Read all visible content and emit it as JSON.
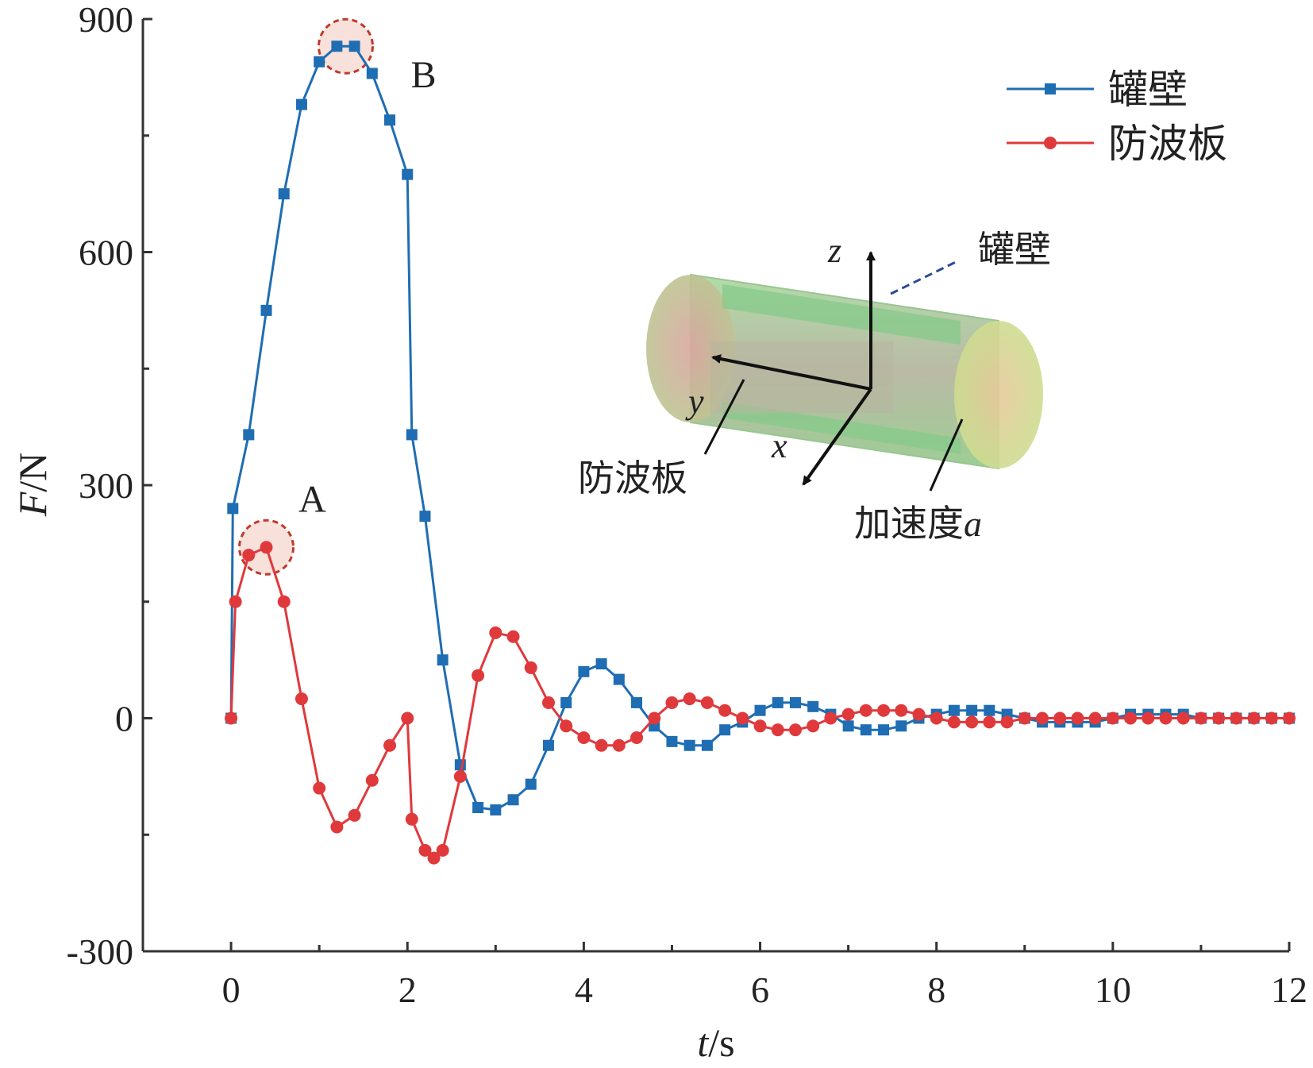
{
  "chart_data": {
    "type": "line",
    "xlabel_var": "t",
    "xlabel_unit": "/s",
    "ylabel_var": "F",
    "ylabel_unit": "/N",
    "xlim": [
      -1,
      12
    ],
    "ylim": [
      -300,
      900
    ],
    "xticks": [
      0,
      2,
      4,
      6,
      8,
      10,
      12
    ],
    "yticks": [
      -300,
      0,
      300,
      600,
      900
    ],
    "legend_position": "top-right",
    "series": [
      {
        "name": "罐壁",
        "color": "#1f6db3",
        "marker": "square",
        "x": [
          0,
          0.02,
          0.2,
          0.4,
          0.6,
          0.8,
          1.0,
          1.2,
          1.4,
          1.6,
          1.8,
          2.0,
          2.05,
          2.2,
          2.4,
          2.6,
          2.8,
          3.0,
          3.2,
          3.4,
          3.6,
          3.8,
          4.0,
          4.2,
          4.4,
          4.6,
          4.8,
          5.0,
          5.2,
          5.4,
          5.6,
          5.8,
          6.0,
          6.2,
          6.4,
          6.6,
          6.8,
          7.0,
          7.2,
          7.4,
          7.6,
          7.8,
          8.0,
          8.2,
          8.4,
          8.6,
          8.8,
          9.0,
          9.2,
          9.4,
          9.6,
          9.8,
          10.0,
          10.2,
          10.4,
          10.6,
          10.8,
          11.0,
          11.2,
          11.4,
          11.6,
          11.8,
          12.0
        ],
        "y": [
          0,
          270,
          365,
          525,
          675,
          790,
          845,
          865,
          865,
          830,
          770,
          700,
          365,
          260,
          75,
          -60,
          -115,
          -118,
          -105,
          -85,
          -35,
          20,
          60,
          70,
          50,
          20,
          -10,
          -30,
          -35,
          -35,
          -15,
          -5,
          10,
          20,
          20,
          15,
          5,
          -10,
          -15,
          -15,
          -10,
          0,
          5,
          10,
          10,
          10,
          5,
          0,
          -5,
          -5,
          -5,
          -5,
          0,
          5,
          5,
          5,
          5,
          0,
          0,
          0,
          0,
          0,
          0
        ]
      },
      {
        "name": "防波板",
        "color": "#e0393c",
        "marker": "circle",
        "x": [
          0,
          0.05,
          0.2,
          0.4,
          0.6,
          0.8,
          1.0,
          1.2,
          1.4,
          1.6,
          1.8,
          2.0,
          2.05,
          2.2,
          2.3,
          2.4,
          2.6,
          2.8,
          3.0,
          3.2,
          3.4,
          3.6,
          3.8,
          4.0,
          4.2,
          4.4,
          4.6,
          4.8,
          5.0,
          5.2,
          5.4,
          5.6,
          5.8,
          6.0,
          6.2,
          6.4,
          6.6,
          6.8,
          7.0,
          7.2,
          7.4,
          7.6,
          7.8,
          8.0,
          8.2,
          8.4,
          8.6,
          8.8,
          9.0,
          9.2,
          9.4,
          9.6,
          9.8,
          10.0,
          10.2,
          10.4,
          10.6,
          10.8,
          11.0,
          11.2,
          11.4,
          11.6,
          11.8,
          12.0
        ],
        "y": [
          0,
          150,
          210,
          220,
          150,
          25,
          -90,
          -140,
          -125,
          -80,
          -35,
          0,
          -130,
          -170,
          -180,
          -170,
          -75,
          55,
          110,
          105,
          65,
          20,
          -10,
          -25,
          -35,
          -35,
          -25,
          0,
          20,
          25,
          20,
          10,
          0,
          -10,
          -15,
          -15,
          -10,
          0,
          5,
          10,
          10,
          10,
          5,
          0,
          -5,
          -5,
          -5,
          -5,
          0,
          0,
          0,
          0,
          0,
          0,
          0,
          0,
          0,
          0,
          0,
          0,
          0,
          0,
          0,
          0
        ]
      }
    ],
    "annotations": [
      {
        "label": "A",
        "x": 0.4,
        "y": 220
      },
      {
        "label": "B",
        "x": 1.3,
        "y": 865
      }
    ]
  },
  "inset": {
    "label_wall": "罐壁",
    "label_baffle": "防波板",
    "label_accel": "加速度",
    "label_accel_var": "a",
    "axis_x": "x",
    "axis_y": "y",
    "axis_z": "z"
  }
}
